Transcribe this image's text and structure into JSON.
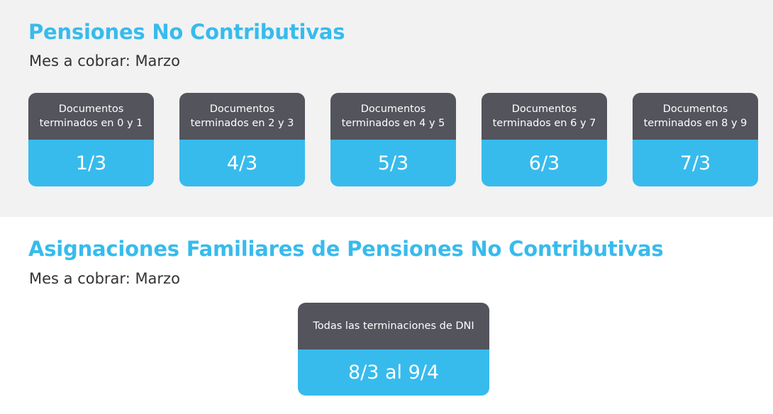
{
  "pensiones": {
    "title": "Pensiones No Contributivas",
    "subtitle": "Mes a cobrar: Marzo",
    "cards": [
      {
        "label": "Documentos terminados en 0 y 1",
        "date": "1/3"
      },
      {
        "label": "Documentos terminados en 2 y 3",
        "date": "4/3"
      },
      {
        "label": "Documentos terminados en 4 y 5",
        "date": "5/3"
      },
      {
        "label": "Documentos terminados en 6 y 7",
        "date": "6/3"
      },
      {
        "label": "Documentos terminados en 8 y 9",
        "date": "7/3"
      }
    ]
  },
  "asignaciones": {
    "title": "Asignaciones Familiares de Pensiones No Contributivas",
    "subtitle": "Mes a cobrar: Marzo",
    "card": {
      "label": "Todas las terminaciones de DNI",
      "date": "8/3 al 9/4"
    }
  },
  "colors": {
    "accent": "#37bbed",
    "card_header": "#53545c",
    "top_background": "#f2f2f2"
  }
}
